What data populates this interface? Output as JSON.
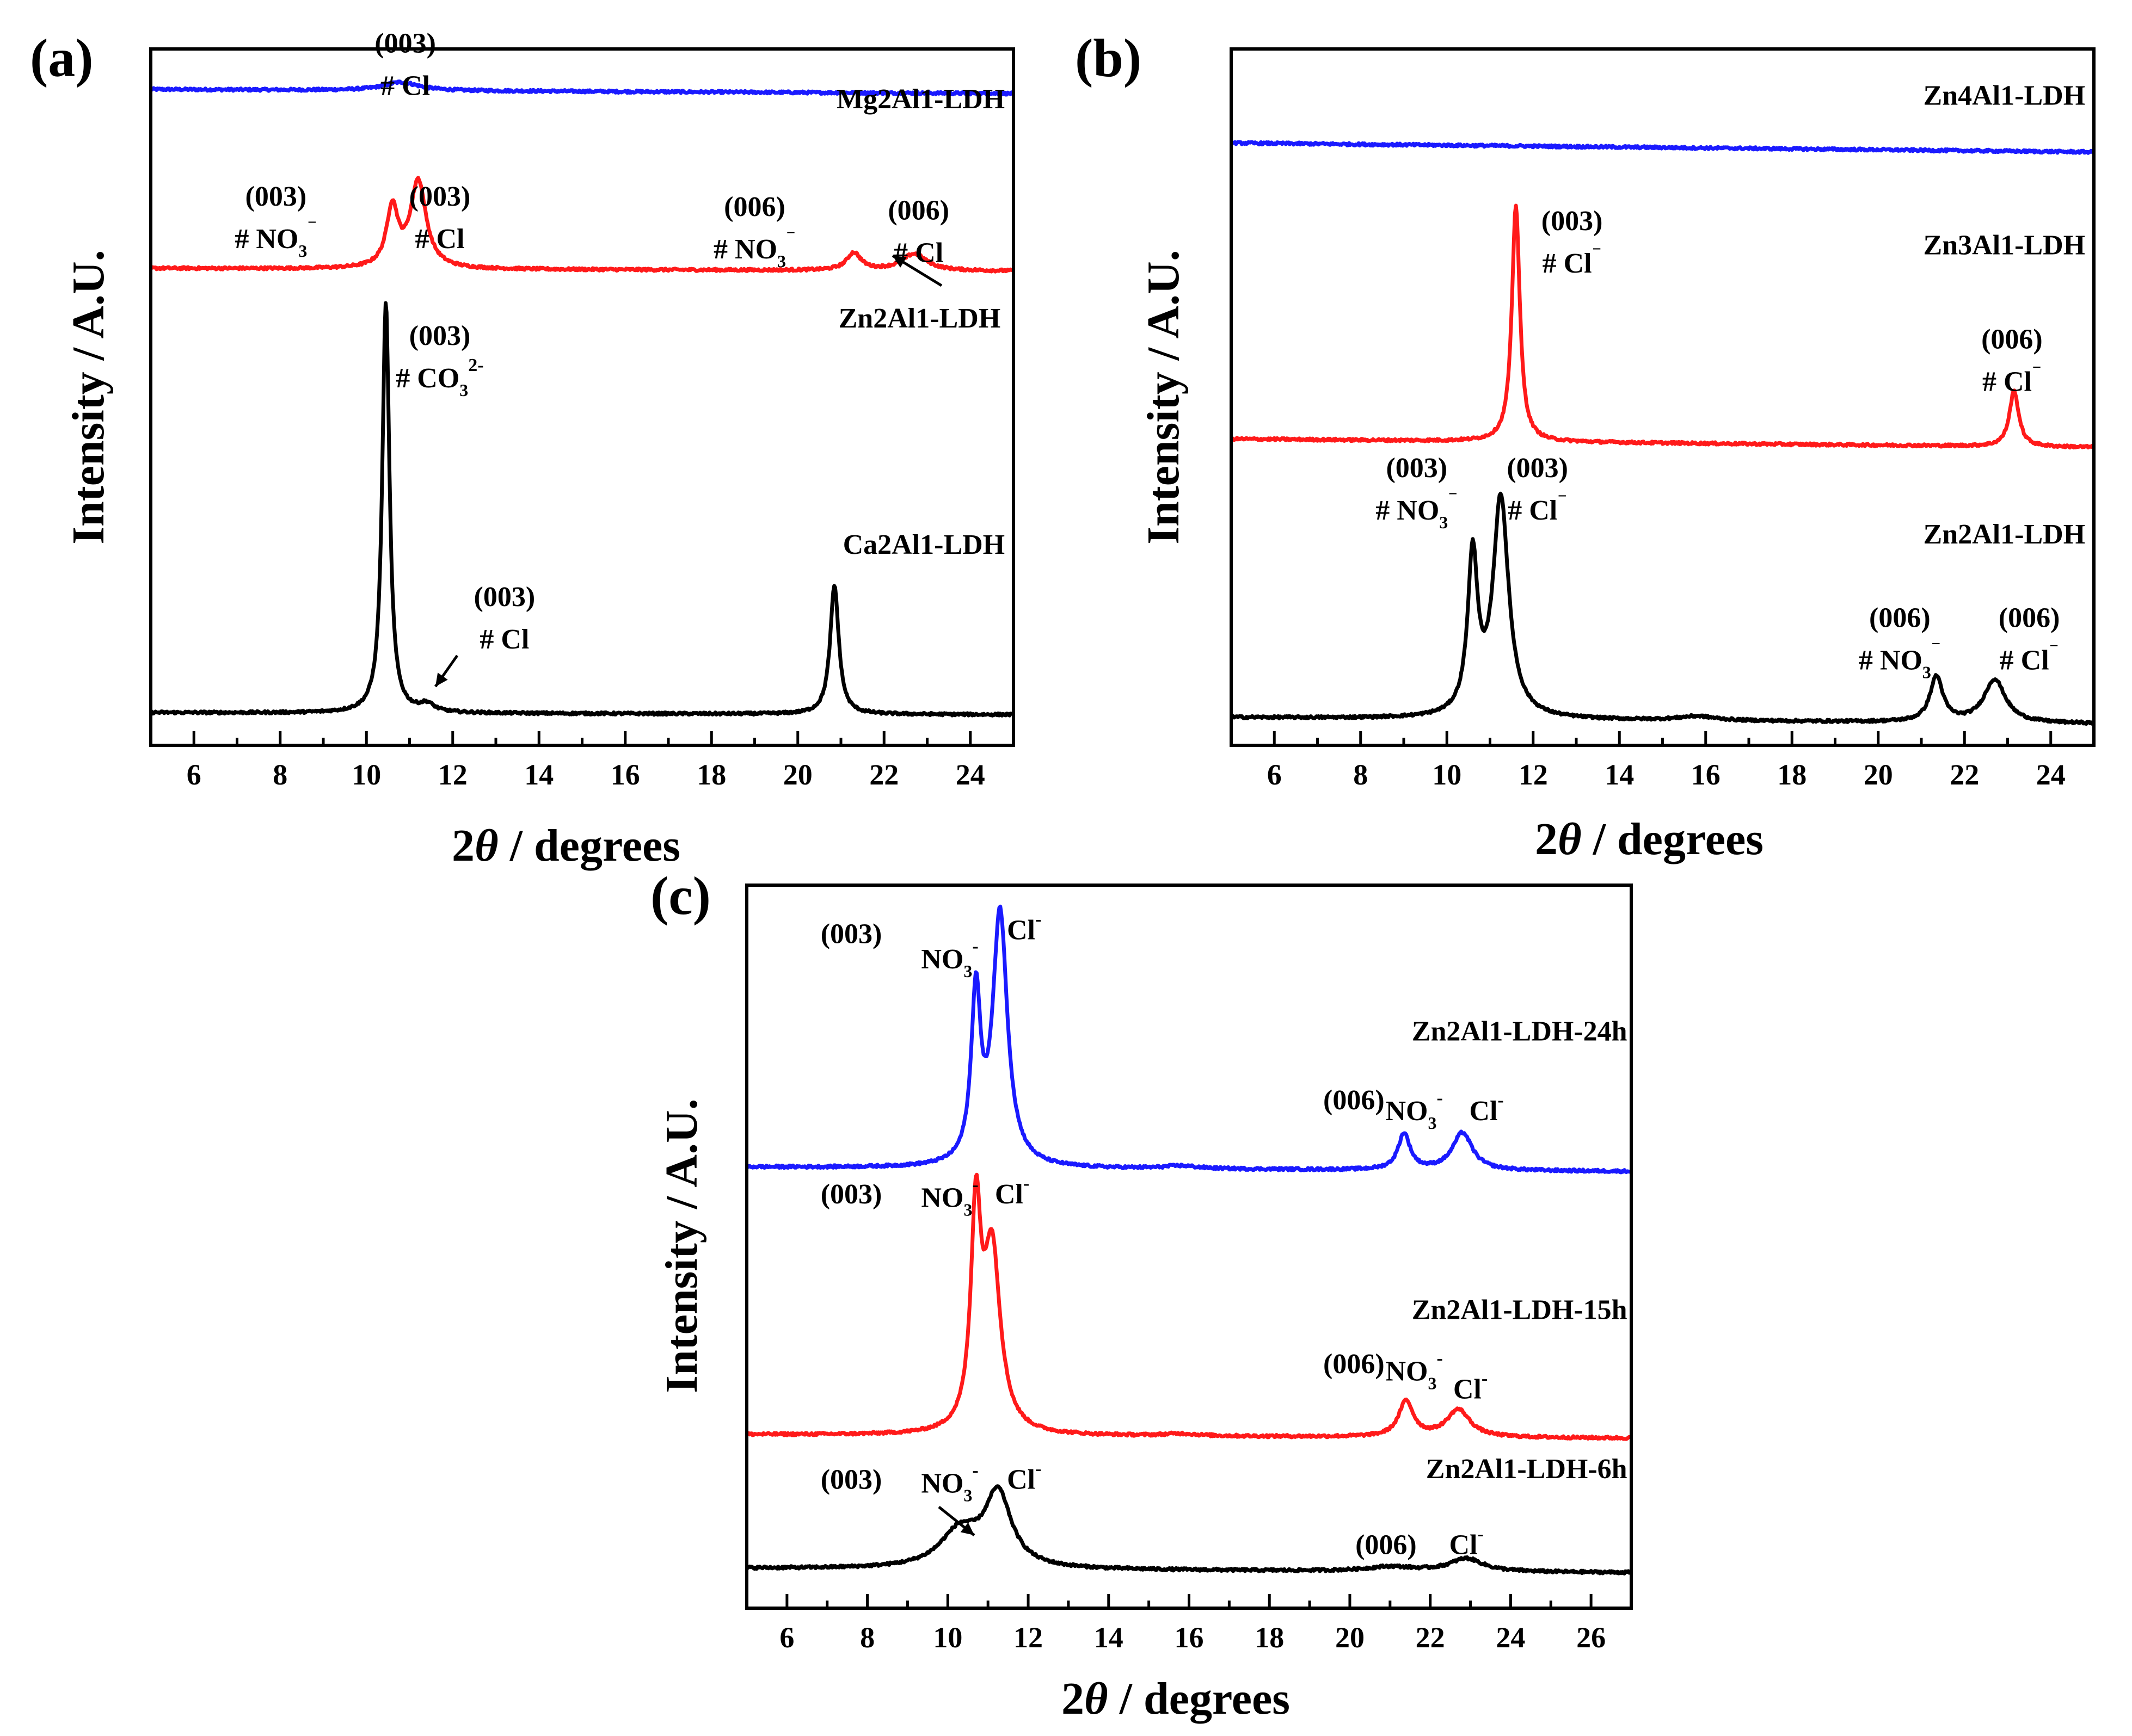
{
  "chart_data": [
    {
      "panel": "(a)",
      "type": "line",
      "xlabel_prefix": "2",
      "xlabel_theta": "θ",
      "xlabel_suffix": " / degrees",
      "ylabel": "Intensity / A.U.",
      "xlim": [
        5,
        25
      ],
      "ylim": [
        0,
        100
      ],
      "xticks": [
        "6",
        "8",
        "10",
        "12",
        "14",
        "16",
        "18",
        "20",
        "22",
        "24"
      ],
      "series": [
        {
          "name": "Mg2Al1-LDH",
          "color": "#1a1aff",
          "baseline": 94.2,
          "drift": -0.6,
          "peaks": [
            [
              10.8,
              1.2,
              0.5
            ]
          ]
        },
        {
          "name": "Zn2Al1-LDH",
          "color": "#ff1a1a",
          "baseline": 68.5,
          "drift": -0.4,
          "peaks": [
            [
              10.6,
              8.5,
              0.16
            ],
            [
              11.2,
              12.5,
              0.22
            ],
            [
              21.3,
              2.5,
              0.2
            ],
            [
              22.7,
              2.4,
              0.35
            ]
          ]
        },
        {
          "name": "Ca2Al1-LDH",
          "color": "#000000",
          "baseline": 4.7,
          "drift": -0.3,
          "peaks": [
            [
              10.45,
              59,
              0.1
            ],
            [
              11.4,
              1.1,
              0.2
            ],
            [
              20.85,
              18.5,
              0.12
            ]
          ]
        }
      ],
      "annotations": [
        {
          "hkl": "(003)",
          "ion": "# Cl",
          "sup": "",
          "sub": "",
          "x": 10.9,
          "y": 99.5
        },
        {
          "hkl": "(003)",
          "ion": "# NO",
          "sub": "3",
          "sup": "⁻",
          "x": 7.9,
          "y": 77.5
        },
        {
          "hkl": "(003)",
          "ion": "# Cl",
          "sup": "",
          "sub": "",
          "x": 11.7,
          "y": 77.5
        },
        {
          "hkl": "(006)",
          "ion": "# NO",
          "sub": "3",
          "sup": "⁻",
          "x": 19.0,
          "y": 76.0
        },
        {
          "hkl": "(006)",
          "ion": "# Cl",
          "sup": "",
          "sub": "",
          "x": 22.8,
          "y": 75.5
        },
        {
          "hkl": "(003)",
          "ion": "# CO",
          "sub": "3",
          "sup": "2-",
          "x": 11.7,
          "y": 57.5
        },
        {
          "hkl": "(003)",
          "ion": "# Cl",
          "sup": "",
          "sub": "",
          "x": 13.2,
          "y": 20.0
        }
      ],
      "labels": [
        {
          "text": "Mg2Al1-LDH",
          "x": 24.8,
          "y": 91.5
        },
        {
          "text": "Zn2Al1-LDH",
          "x": 24.7,
          "y": 60.0
        },
        {
          "text": "Ca2Al1-LDH",
          "x": 24.8,
          "y": 27.5
        }
      ]
    },
    {
      "panel": "(b)",
      "type": "line",
      "xlabel_prefix": "2",
      "xlabel_theta": "θ",
      "xlabel_suffix": " / degrees",
      "ylabel": "Intensity / A.U.",
      "xlim": [
        5,
        25
      ],
      "ylim": [
        0,
        100
      ],
      "xticks": [
        "6",
        "8",
        "10",
        "12",
        "14",
        "16",
        "18",
        "20",
        "22",
        "24"
      ],
      "series": [
        {
          "name": "Zn4Al1-LDH",
          "color": "#1a1aff",
          "baseline": 86.5,
          "drift": -1.3,
          "peaks": []
        },
        {
          "name": "Zn3Al1-LDH",
          "color": "#ff1a1a",
          "baseline": 44.0,
          "drift": -1.2,
          "peaks": [
            [
              11.6,
              34,
              0.11
            ],
            [
              23.15,
              8,
              0.13
            ]
          ]
        },
        {
          "name": "Zn2Al1-LDH",
          "color": "#000000",
          "baseline": 4.0,
          "drift": -0.9,
          "peaks": [
            [
              10.6,
              22.5,
              0.14
            ],
            [
              11.25,
              31.5,
              0.22
            ],
            [
              15.8,
              0.6,
              0.5
            ],
            [
              21.35,
              6.5,
              0.18
            ],
            [
              22.7,
              6.2,
              0.3
            ]
          ]
        }
      ],
      "annotations": [
        {
          "hkl": "(003)",
          "ion": "# Cl",
          "sub": "",
          "sup": "⁻",
          "x": 12.9,
          "y": 74.0
        },
        {
          "hkl": "(006)",
          "ion": "# Cl",
          "sub": "",
          "sup": "⁻",
          "x": 23.1,
          "y": 57.0
        },
        {
          "hkl": "(003)",
          "ion": "# NO",
          "sub": "3",
          "sup": "⁻",
          "x": 9.3,
          "y": 38.5
        },
        {
          "hkl": "(003)",
          "ion": "# Cl",
          "sub": "",
          "sup": "⁻",
          "x": 12.1,
          "y": 38.5
        },
        {
          "hkl": "(006)",
          "ion": "# NO",
          "sub": "3",
          "sup": "⁻",
          "x": 20.5,
          "y": 17.0
        },
        {
          "hkl": "(006)",
          "ion": "# Cl",
          "sub": "",
          "sup": "⁻",
          "x": 23.5,
          "y": 17.0
        }
      ],
      "labels": [
        {
          "text": "Zn4Al1-LDH",
          "x": 24.8,
          "y": 92.0
        },
        {
          "text": "Zn3Al1-LDH",
          "x": 24.8,
          "y": 70.5
        },
        {
          "text": "Zn2Al1-LDH",
          "x": 24.8,
          "y": 29.0
        }
      ]
    },
    {
      "panel": "(c)",
      "type": "line",
      "xlabel_prefix": "2",
      "xlabel_theta": "θ",
      "xlabel_suffix": " / degrees",
      "ylabel": "Intensity / A.U.",
      "xlim": [
        5,
        27
      ],
      "ylim": [
        0,
        100
      ],
      "xticks": [
        "6",
        "8",
        "10",
        "12",
        "14",
        "16",
        "18",
        "20",
        "22",
        "24",
        "26"
      ],
      "series": [
        {
          "name": "Zn2Al1-LDH-24h",
          "color": "#1a1aff",
          "baseline": 61.0,
          "drift": -0.6,
          "peaks": [
            [
              10.7,
              23,
              0.14
            ],
            [
              11.3,
              35,
              0.22
            ],
            [
              15.8,
              0.4,
              0.5
            ],
            [
              21.35,
              5,
              0.18
            ],
            [
              22.8,
              5.2,
              0.3
            ]
          ]
        },
        {
          "name": "Zn2Al1-LDH-15h",
          "color": "#ff1a1a",
          "baseline": 24.0,
          "drift": -0.5,
          "peaks": [
            [
              10.7,
              29,
              0.15
            ],
            [
              11.1,
              25,
              0.25
            ],
            [
              15.8,
              0.3,
              0.5
            ],
            [
              21.4,
              4.9,
              0.22
            ],
            [
              22.7,
              3.8,
              0.35
            ]
          ]
        },
        {
          "name": "Zn2Al1-LDH-6h",
          "color": "#000000",
          "baseline": 5.5,
          "drift": -0.6,
          "peaks": [
            [
              10.3,
              5,
              0.6
            ],
            [
              11.25,
              10,
              0.4
            ],
            [
              21.0,
              0.6,
              0.7
            ],
            [
              22.9,
              1.8,
              0.5
            ]
          ]
        }
      ],
      "annotations": [
        {
          "hkl": "(003)",
          "ion": "",
          "sub": "",
          "sup": "",
          "x": 7.6,
          "y": 92.0
        },
        {
          "hkl": "",
          "ion": "NO",
          "sub": "3",
          "sup": "-",
          "x": 10.05,
          "y": 88.5
        },
        {
          "hkl": "",
          "ion": "Cl",
          "sub": "",
          "sup": "-",
          "x": 11.9,
          "y": 92.5
        },
        {
          "hkl": "(006)",
          "ion": "",
          "sub": "",
          "sup": "",
          "x": 20.1,
          "y": 69.0
        },
        {
          "hkl": "",
          "ion": "NO",
          "sub": "3",
          "sup": "-",
          "x": 21.6,
          "y": 67.5
        },
        {
          "hkl": "",
          "ion": "Cl",
          "sub": "",
          "sup": "-",
          "x": 23.4,
          "y": 67.5
        },
        {
          "hkl": "(003)",
          "ion": "",
          "sub": "",
          "sup": "",
          "x": 7.6,
          "y": 56.0
        },
        {
          "hkl": "",
          "ion": "NO",
          "sub": "3",
          "sup": "-",
          "x": 10.05,
          "y": 55.5
        },
        {
          "hkl": "",
          "ion": "Cl",
          "sub": "",
          "sup": "-",
          "x": 11.6,
          "y": 56.0
        },
        {
          "hkl": "(006)",
          "ion": "",
          "sub": "",
          "sup": "",
          "x": 20.1,
          "y": 32.5
        },
        {
          "hkl": "",
          "ion": "NO",
          "sub": "3",
          "sup": "-",
          "x": 21.6,
          "y": 31.5
        },
        {
          "hkl": "",
          "ion": "Cl",
          "sub": "",
          "sup": "-",
          "x": 23.0,
          "y": 29.0
        },
        {
          "hkl": "(003)",
          "ion": "",
          "sub": "",
          "sup": "",
          "x": 7.6,
          "y": 16.5
        },
        {
          "hkl": "",
          "ion": "NO",
          "sub": "3",
          "sup": "-",
          "x": 10.05,
          "y": 16.0
        },
        {
          "hkl": "",
          "ion": "Cl",
          "sub": "",
          "sup": "-",
          "x": 11.9,
          "y": 16.5
        },
        {
          "hkl": "(006)",
          "ion": "",
          "sub": "",
          "sup": "",
          "x": 20.9,
          "y": 7.5
        },
        {
          "hkl": "",
          "ion": "Cl",
          "sub": "",
          "sup": "-",
          "x": 22.9,
          "y": 7.5
        }
      ],
      "labels": [
        {
          "text": "Zn2Al1-LDH-24h",
          "x": 26.9,
          "y": 78.5
        },
        {
          "text": "Zn2Al1-LDH-15h",
          "x": 26.9,
          "y": 40.0
        },
        {
          "text": "Zn2Al1-LDH-6h",
          "x": 26.9,
          "y": 18.0
        }
      ]
    }
  ]
}
